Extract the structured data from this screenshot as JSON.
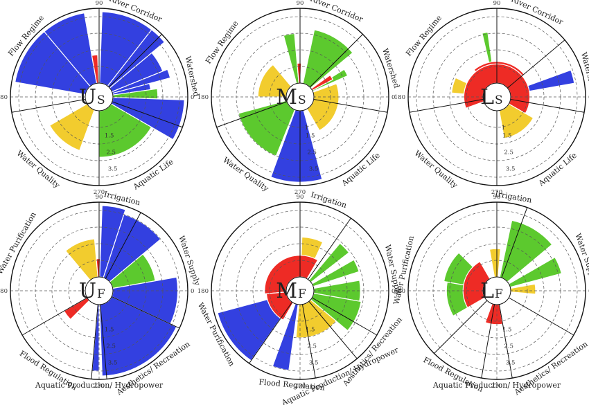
{
  "chart_data": [
    {
      "type": "polar-bar",
      "center_label": "U",
      "center_sub": "S",
      "r_ticks": [
        "1.5",
        "2.5",
        "3.5"
      ],
      "angle_labels": [
        "0",
        "90",
        "180",
        "270"
      ],
      "sectors": [
        {
          "name": "River Corridor",
          "start": 90,
          "end": 45
        },
        {
          "name": "Watershed",
          "start": 45,
          "end": -20
        },
        {
          "name": "Aquatic Life",
          "start": -20,
          "end": -90
        },
        {
          "name": "Water Quality",
          "start": -90,
          "end": -170
        },
        {
          "name": "Flow Regime",
          "start": 190,
          "end": 90
        }
      ],
      "bars": [
        {
          "color": "blue",
          "start": 88,
          "end": 52,
          "value": 4.3
        },
        {
          "color": "blue",
          "start": 52,
          "end": 40,
          "value": 4.3
        },
        {
          "color": "blue",
          "start": 40,
          "end": 22,
          "value": 3.3
        },
        {
          "color": "blue",
          "start": 22,
          "end": 15,
          "value": 3.6
        },
        {
          "color": "blue",
          "start": 15,
          "end": 8,
          "value": 2.3
        },
        {
          "color": "green",
          "start": 8,
          "end": -2,
          "value": 2.7
        },
        {
          "color": "blue",
          "start": -2,
          "end": -30,
          "value": 4.3
        },
        {
          "color": "green",
          "start": -30,
          "end": -90,
          "value": 2.8
        },
        {
          "color": "yellow",
          "start": -110,
          "end": -150,
          "value": 2.6
        },
        {
          "color": "blue",
          "start": 170,
          "end": 130,
          "value": 4.3
        },
        {
          "color": "blue",
          "start": 130,
          "end": 100,
          "value": 4.3
        },
        {
          "color": "red",
          "start": 100,
          "end": 92,
          "value": 1.7
        }
      ]
    },
    {
      "type": "polar-bar",
      "center_label": "M",
      "center_sub": "S",
      "r_ticks": [
        "1",
        "1.5",
        "2.5",
        "3.5"
      ],
      "angle_labels": [
        "0",
        "90",
        "180",
        "270"
      ],
      "sectors": [
        {
          "name": "River Corridor",
          "start": 90,
          "end": 45
        },
        {
          "name": "Watershed",
          "start": 45,
          "end": -10
        },
        {
          "name": "Aquatic Life",
          "start": -10,
          "end": -90
        },
        {
          "name": "Water Quality",
          "start": -90,
          "end": -160
        },
        {
          "name": "Flow Regime",
          "start": 200,
          "end": 90
        }
      ],
      "bars": [
        {
          "color": "green",
          "start": 78,
          "end": 40,
          "value": 3.3
        },
        {
          "color": "green",
          "start": 32,
          "end": 24,
          "value": 2.3
        },
        {
          "color": "red",
          "start": 36,
          "end": 28,
          "value": 1.4
        },
        {
          "color": "green",
          "start": 105,
          "end": 95,
          "value": 3.0
        },
        {
          "color": "red",
          "start": 95,
          "end": 88,
          "value": 1.2
        },
        {
          "color": "yellow",
          "start": 180,
          "end": 130,
          "value": 1.7
        },
        {
          "color": "yellow",
          "start": 20,
          "end": -60,
          "value": 1.5
        },
        {
          "color": "green",
          "start": -112,
          "end": -165,
          "value": 3.0
        },
        {
          "color": "blue",
          "start": -75,
          "end": -110,
          "value": 4.3
        }
      ]
    },
    {
      "type": "polar-bar",
      "center_label": "L",
      "center_sub": "S",
      "r_ticks": [
        "1",
        "1.5",
        "2.5",
        "3.5"
      ],
      "angle_labels": [
        "0",
        "90",
        "180",
        "270"
      ],
      "sectors": [
        {
          "name": "River Corridor",
          "start": 90,
          "end": 40
        },
        {
          "name": "Watershed",
          "start": 40,
          "end": -10
        },
        {
          "name": "Aquatic Life",
          "start": -10,
          "end": -90
        },
        {
          "name": "Water Quality",
          "start": -90,
          "end": -170
        },
        {
          "name": "Flow Regime",
          "start": 190,
          "end": 90
        }
      ],
      "bars": [
        {
          "color": "green",
          "start": 103,
          "end": 98,
          "value": 3.1
        },
        {
          "color": "blue",
          "start": 20,
          "end": 10,
          "value": 3.9
        },
        {
          "color": "yellow",
          "start": 175,
          "end": 155,
          "value": 1.9
        },
        {
          "color": "yellow",
          "start": -30,
          "end": -80,
          "value": 1.7
        },
        {
          "color": "red",
          "start": 130,
          "end": 40,
          "value": 1.3
        },
        {
          "color": "red",
          "start": 200,
          "end": -30,
          "value": 1.15
        }
      ]
    },
    {
      "type": "polar-bar",
      "center_label": "U",
      "center_sub": "F",
      "r_ticks": [
        "1.5",
        "2.5",
        "3.5"
      ],
      "angle_labels": [
        "0",
        "90",
        "180",
        "270"
      ],
      "sectors": [
        {
          "name": "Irrigation",
          "start": 90,
          "end": 62
        },
        {
          "name": "Water Supply",
          "start": 62,
          "end": -25
        },
        {
          "name": "Aesthetics/ Recreation",
          "start": -25,
          "end": -85
        },
        {
          "name": "Aquatic Production/ Hydropower",
          "start": -85,
          "end": -95
        },
        {
          "name": "Flood Regulation",
          "start": -95,
          "end": -150
        },
        {
          "name": "Water Purification",
          "start": 210,
          "end": 90
        }
      ],
      "bars": [
        {
          "color": "blue",
          "start": 88,
          "end": 72,
          "value": 4.3
        },
        {
          "color": "blue",
          "start": 72,
          "end": 40,
          "value": 4.0
        },
        {
          "color": "green",
          "start": 40,
          "end": 10,
          "value": 2.6
        },
        {
          "color": "blue",
          "start": 10,
          "end": -25,
          "value": 3.9
        },
        {
          "color": "blue",
          "start": -25,
          "end": -88,
          "value": 4.3
        },
        {
          "color": "blue",
          "start": -90,
          "end": -95,
          "value": 4.0
        },
        {
          "color": "red",
          "start": -135,
          "end": -150,
          "value": 1.6
        },
        {
          "color": "yellow",
          "start": 130,
          "end": 95,
          "value": 2.3
        },
        {
          "color": "red",
          "start": 95,
          "end": 88,
          "value": 1.1
        }
      ]
    },
    {
      "type": "polar-bar",
      "center_label": "M",
      "center_sub": "F",
      "r_ticks": [
        "1.5",
        "2.5",
        "3.5"
      ],
      "angle_labels": [
        "0",
        "90",
        "180",
        "270"
      ],
      "sectors": [
        {
          "name": "Irrigation",
          "start": 90,
          "end": 55
        },
        {
          "name": "Water Supply",
          "start": 55,
          "end": -30
        },
        {
          "name": "Aesthetics/ Recreation",
          "start": -30,
          "end": -50
        },
        {
          "name": "Aquatic Production/ Hydropower",
          "start": -50,
          "end": -80
        },
        {
          "name": "Flood Regulation",
          "start": -80,
          "end": -110
        },
        {
          "name": "Water Purification",
          "start": 235,
          "end": 180
        }
      ],
      "bars": [
        {
          "color": "yellow",
          "start": 88,
          "end": 65,
          "value": 2.4
        },
        {
          "color": "green",
          "start": 50,
          "end": 38,
          "value": 2.9
        },
        {
          "color": "green",
          "start": 30,
          "end": 18,
          "value": 2.9
        },
        {
          "color": "green",
          "start": 10,
          "end": -10,
          "value": 2.8
        },
        {
          "color": "green",
          "start": -10,
          "end": -40,
          "value": 2.9
        },
        {
          "color": "yellow",
          "start": -40,
          "end": -95,
          "value": 2.0
        },
        {
          "color": "blue",
          "start": -98,
          "end": -110,
          "value": 4.0
        },
        {
          "color": "blue",
          "start": 195,
          "end": 235,
          "value": 4.3
        },
        {
          "color": "red",
          "start": 60,
          "end": 185,
          "value": 1.3
        },
        {
          "color": "red",
          "start": 185,
          "end": 240,
          "value": 1.2
        }
      ]
    },
    {
      "type": "polar-bar",
      "center_label": "L",
      "center_sub": "F",
      "r_ticks": [
        "1.5",
        "2.5",
        "3.5"
      ],
      "angle_labels": [
        "0",
        "90",
        "180",
        "270"
      ],
      "sectors": [
        {
          "name": "Irrigation",
          "start": 90,
          "end": 70
        },
        {
          "name": "Water Supply",
          "start": 70,
          "end": -30
        },
        {
          "name": "Aesthetics/ Recreation",
          "start": -30,
          "end": -80
        },
        {
          "name": "Aquatic Production/ Hydropower",
          "start": -80,
          "end": -100
        },
        {
          "name": "Flood Regulation",
          "start": -100,
          "end": -135
        },
        {
          "name": "Water Purification",
          "start": 225,
          "end": 110
        }
      ],
      "bars": [
        {
          "color": "green",
          "start": 78,
          "end": 40,
          "value": 3.5
        },
        {
          "color": "green",
          "start": 30,
          "end": 15,
          "value": 3.2
        },
        {
          "color": "yellow",
          "start": 10,
          "end": -5,
          "value": 1.5
        },
        {
          "color": "yellow",
          "start": 100,
          "end": 85,
          "value": 1.7
        },
        {
          "color": "green",
          "start": 210,
          "end": 170,
          "value": 2.2
        },
        {
          "color": "green",
          "start": 170,
          "end": 135,
          "value": 2.4
        },
        {
          "color": "red",
          "start": 120,
          "end": 210,
          "value": 1.2
        },
        {
          "color": "red",
          "start": -80,
          "end": -110,
          "value": 1.2
        }
      ]
    }
  ],
  "colors": {
    "blue": "#3340e0",
    "green": "#5cc92e",
    "yellow": "#f2cc2e",
    "red": "#ee2b25"
  }
}
